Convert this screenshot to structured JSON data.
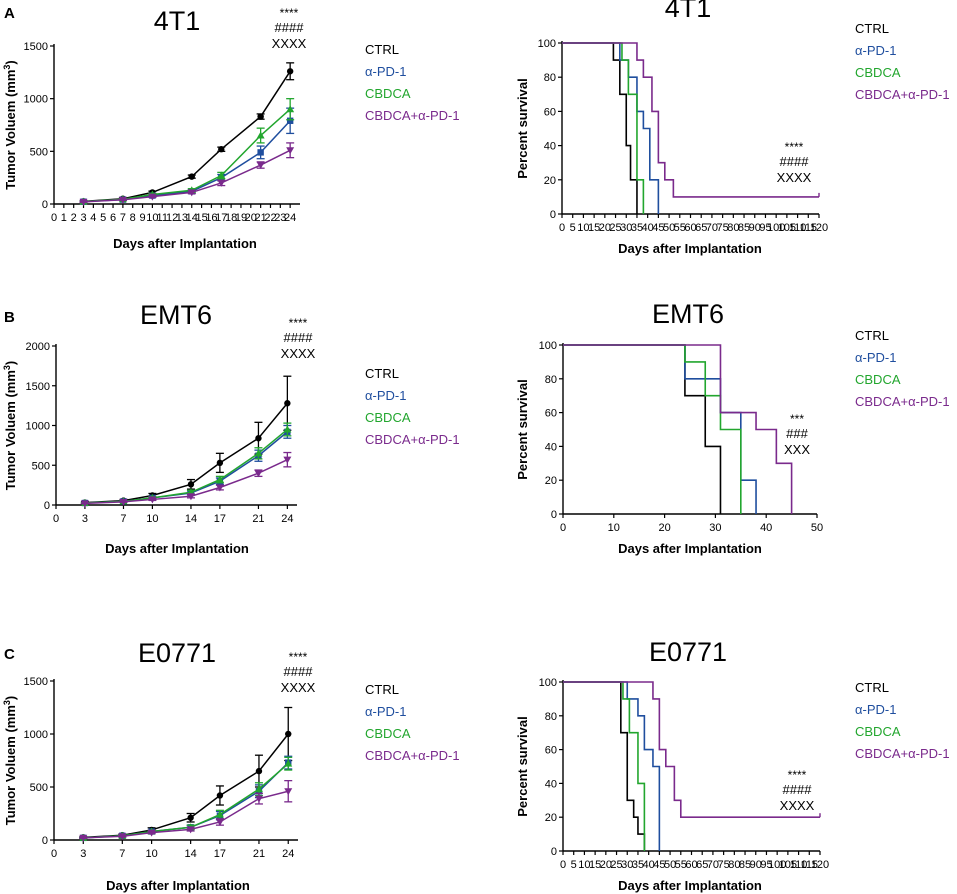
{
  "series_colors": {
    "CTRL": "#000000",
    "α-PD-1": "#1f4e9e",
    "CBDCA": "#22a62e",
    "CBDCA+α-PD-1": "#7a2a8c"
  },
  "panel_labels": [
    "A",
    "B",
    "C"
  ],
  "chart_data": [
    {
      "id": "A-growth",
      "type": "line",
      "title": "4T1",
      "xlabel": "Days after Implantation",
      "ylabel": "Tumor Voluem (mm³)",
      "xlim": [
        0,
        25
      ],
      "ylim": [
        0,
        1500
      ],
      "xticks": [
        0,
        1,
        2,
        3,
        4,
        5,
        6,
        7,
        8,
        9,
        10,
        11,
        12,
        13,
        14,
        15,
        16,
        17,
        18,
        19,
        20,
        21,
        22,
        23,
        24
      ],
      "yticks": [
        0,
        500,
        1000,
        1500
      ],
      "x": [
        3,
        7,
        10,
        14,
        17,
        21,
        24
      ],
      "series": [
        {
          "name": "CTRL",
          "values": [
            25,
            50,
            110,
            260,
            520,
            830,
            1260
          ],
          "err": [
            5,
            8,
            12,
            15,
            20,
            25,
            80
          ]
        },
        {
          "name": "α-PD-1",
          "values": [
            22,
            42,
            80,
            120,
            250,
            490,
            790
          ],
          "err": [
            5,
            6,
            10,
            15,
            30,
            60,
            120
          ]
        },
        {
          "name": "CBDCA",
          "values": [
            22,
            45,
            90,
            130,
            270,
            650,
            900
          ],
          "err": [
            5,
            6,
            10,
            15,
            30,
            70,
            100
          ]
        },
        {
          "name": "CBDCA+α-PD-1",
          "values": [
            20,
            40,
            70,
            110,
            200,
            370,
            510
          ],
          "err": [
            5,
            6,
            8,
            12,
            25,
            30,
            70
          ]
        }
      ],
      "legend": [
        "CTRL",
        "α-PD-1",
        "CBDCA",
        "CBDCA+α-PD-1"
      ],
      "significance": [
        "****",
        "####",
        "XXXX"
      ]
    },
    {
      "id": "A-survival",
      "type": "line",
      "title": "4T1",
      "xlabel": "Days after Implantation",
      "ylabel": "Percent survival",
      "xlim": [
        0,
        120
      ],
      "ylim": [
        0,
        100
      ],
      "xticks": [
        0,
        5,
        10,
        15,
        20,
        25,
        30,
        35,
        40,
        45,
        50,
        55,
        60,
        65,
        70,
        75,
        80,
        85,
        90,
        95,
        100,
        105,
        110,
        115,
        120
      ],
      "yticks": [
        0,
        20,
        40,
        60,
        80,
        100
      ],
      "series": [
        {
          "name": "CTRL",
          "x": [
            0,
            24,
            27,
            30,
            32,
            35
          ],
          "values": [
            100,
            90,
            70,
            40,
            20,
            0
          ]
        },
        {
          "name": "α-PD-1",
          "x": [
            0,
            27,
            31,
            35,
            38,
            41,
            45
          ],
          "values": [
            100,
            90,
            80,
            60,
            50,
            20,
            0
          ]
        },
        {
          "name": "CBDCA",
          "x": [
            0,
            28,
            31,
            35,
            38
          ],
          "values": [
            100,
            90,
            70,
            20,
            0
          ]
        },
        {
          "name": "CBDCA+α-PD-1",
          "x": [
            0,
            35,
            38,
            42,
            45,
            48,
            52,
            120
          ],
          "values": [
            100,
            90,
            80,
            60,
            30,
            20,
            10,
            10
          ]
        }
      ],
      "legend": [
        "CTRL",
        "α-PD-1",
        "CBDCA",
        "CBDCA+α-PD-1"
      ],
      "significance": [
        "****",
        "####",
        "XXXX"
      ]
    },
    {
      "id": "B-growth",
      "type": "line",
      "title": "EMT6",
      "xlabel": "Days after Implantation",
      "ylabel": "Tumor Voluem (mm³)",
      "xlim": [
        0,
        25
      ],
      "ylim": [
        0,
        2000
      ],
      "xticks": [
        0,
        3,
        7,
        10,
        14,
        17,
        21,
        24
      ],
      "yticks": [
        0,
        500,
        1000,
        1500,
        2000
      ],
      "x": [
        3,
        7,
        10,
        14,
        17,
        21,
        24
      ],
      "series": [
        {
          "name": "CTRL",
          "values": [
            30,
            55,
            120,
            260,
            530,
            840,
            1280
          ],
          "err": [
            10,
            15,
            25,
            60,
            120,
            200,
            340
          ]
        },
        {
          "name": "α-PD-1",
          "values": [
            25,
            45,
            90,
            150,
            300,
            620,
            920
          ],
          "err": [
            5,
            10,
            15,
            25,
            40,
            70,
            80
          ]
        },
        {
          "name": "CBDCA",
          "values": [
            25,
            45,
            90,
            160,
            320,
            650,
            950
          ],
          "err": [
            5,
            10,
            15,
            25,
            40,
            70,
            80
          ]
        },
        {
          "name": "CBDCA+α-PD-1",
          "values": [
            20,
            40,
            70,
            110,
            220,
            400,
            570
          ],
          "err": [
            5,
            8,
            12,
            20,
            30,
            40,
            90
          ]
        }
      ],
      "legend": [
        "CTRL",
        "α-PD-1",
        "CBDCA",
        "CBDCA+α-PD-1"
      ],
      "significance": [
        "****",
        "####",
        "XXXX"
      ]
    },
    {
      "id": "B-survival",
      "type": "line",
      "title": "EMT6",
      "xlabel": "Days after Implantation",
      "ylabel": "Percent survival",
      "xlim": [
        0,
        50
      ],
      "ylim": [
        0,
        100
      ],
      "xticks": [
        0,
        10,
        20,
        30,
        40,
        50
      ],
      "yticks": [
        0,
        20,
        40,
        60,
        80,
        100
      ],
      "series": [
        {
          "name": "CTRL",
          "x": [
            0,
            24,
            28,
            31
          ],
          "values": [
            100,
            70,
            40,
            0
          ]
        },
        {
          "name": "α-PD-1",
          "x": [
            0,
            24,
            31,
            35,
            38
          ],
          "values": [
            100,
            80,
            60,
            20,
            0
          ]
        },
        {
          "name": "CBDCA",
          "x": [
            0,
            24,
            28,
            31,
            35
          ],
          "values": [
            100,
            90,
            70,
            50,
            0
          ]
        },
        {
          "name": "CBDCA+α-PD-1",
          "x": [
            0,
            31,
            38,
            42,
            45
          ],
          "values": [
            100,
            60,
            50,
            30,
            0
          ]
        }
      ],
      "legend": [
        "CTRL",
        "α-PD-1",
        "CBDCA",
        "CBDCA+α-PD-1"
      ],
      "significance": [
        "***",
        "###",
        "XXX"
      ]
    },
    {
      "id": "C-growth",
      "type": "line",
      "title": "E0771",
      "xlabel": "Days after Implantation",
      "ylabel": "Tumor Voluem (mm³)",
      "xlim": [
        0,
        25
      ],
      "ylim": [
        0,
        1500
      ],
      "xticks": [
        0,
        3,
        7,
        10,
        14,
        17,
        21,
        24
      ],
      "yticks": [
        0,
        500,
        1000,
        1500
      ],
      "x": [
        3,
        7,
        10,
        14,
        17,
        21,
        24
      ],
      "series": [
        {
          "name": "CTRL",
          "values": [
            25,
            45,
            95,
            210,
            420,
            650,
            1000
          ],
          "err": [
            5,
            10,
            20,
            40,
            90,
            150,
            250
          ]
        },
        {
          "name": "α-PD-1",
          "values": [
            20,
            40,
            80,
            120,
            230,
            460,
            730
          ],
          "err": [
            5,
            8,
            12,
            20,
            40,
            60,
            60
          ]
        },
        {
          "name": "CBDCA",
          "values": [
            20,
            40,
            80,
            120,
            240,
            480,
            720
          ],
          "err": [
            5,
            8,
            12,
            20,
            40,
            60,
            60
          ]
        },
        {
          "name": "CBDCA+α-PD-1",
          "values": [
            20,
            35,
            70,
            100,
            170,
            390,
            460
          ],
          "err": [
            5,
            8,
            10,
            15,
            30,
            50,
            100
          ]
        }
      ],
      "legend": [
        "CTRL",
        "α-PD-1",
        "CBDCA",
        "CBDCA+α-PD-1"
      ],
      "significance": [
        "****",
        "####",
        "XXXX"
      ]
    },
    {
      "id": "C-survival",
      "type": "line",
      "title": "E0771",
      "xlabel": "Days after Implantation",
      "ylabel": "Percent survival",
      "xlim": [
        0,
        120
      ],
      "ylim": [
        0,
        100
      ],
      "xticks": [
        0,
        5,
        10,
        15,
        20,
        25,
        30,
        35,
        40,
        45,
        50,
        55,
        60,
        65,
        70,
        75,
        80,
        85,
        90,
        95,
        100,
        105,
        110,
        115,
        120
      ],
      "yticks": [
        0,
        20,
        40,
        60,
        80,
        100
      ],
      "series": [
        {
          "name": "CTRL",
          "x": [
            0,
            27,
            30,
            33,
            35,
            38
          ],
          "values": [
            100,
            70,
            30,
            20,
            10,
            0
          ]
        },
        {
          "name": "α-PD-1",
          "x": [
            0,
            30,
            35,
            38,
            42,
            45
          ],
          "values": [
            100,
            90,
            80,
            60,
            50,
            0
          ]
        },
        {
          "name": "CBDCA",
          "x": [
            0,
            28,
            31,
            35,
            38
          ],
          "values": [
            100,
            90,
            70,
            40,
            0
          ]
        },
        {
          "name": "CBDCA+α-PD-1",
          "x": [
            0,
            42,
            45,
            48,
            52,
            55,
            58,
            120
          ],
          "values": [
            100,
            90,
            60,
            50,
            30,
            20,
            20,
            20
          ]
        }
      ],
      "legend": [
        "CTRL",
        "α-PD-1",
        "CBDCA",
        "CBDCA+α-PD-1"
      ],
      "significance": [
        "****",
        "####",
        "XXXX"
      ]
    }
  ]
}
